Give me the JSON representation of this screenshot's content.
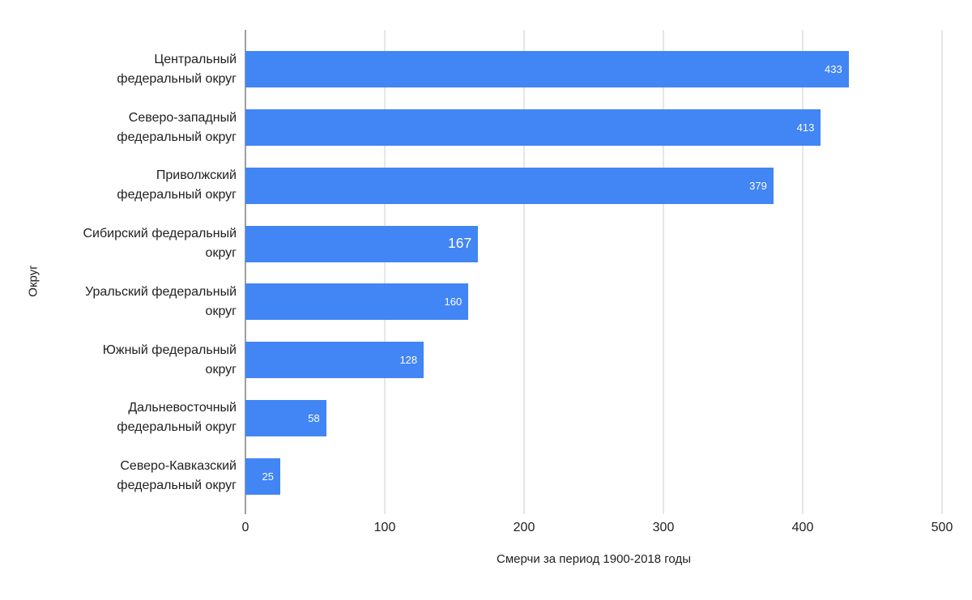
{
  "chart_data": {
    "type": "bar",
    "orientation": "horizontal",
    "categories": [
      "Центральный\nфедеральный округ",
      "Северо-западный\nфедеральный округ",
      "Приволжский\nфедеральный округ",
      "Сибирский федеральный\nокруг",
      "Уральский федеральный\nокруг",
      "Южный федеральный\nокруг",
      "Дальневосточный\nфедеральный округ",
      "Северо-Кавказский\nфедеральный округ"
    ],
    "values": [
      433,
      413,
      379,
      167,
      160,
      128,
      58,
      25
    ],
    "xlabel": "Смерчи за период 1900-2018 годы",
    "ylabel": "Округ",
    "xlim": [
      0,
      500
    ],
    "x_ticks": [
      "0",
      "100",
      "200",
      "300",
      "400",
      "500"
    ],
    "grid": "vertical-only",
    "legend": "none",
    "value_labels_visible": true,
    "emphasized_value_label_index": 3,
    "colors": {
      "bar": "#4285f4",
      "value_label": "#ffffff",
      "gridline": "#e6e6e6",
      "axis_line": "#9e9e9e",
      "text": "#212121",
      "background": "#ffffff"
    }
  }
}
